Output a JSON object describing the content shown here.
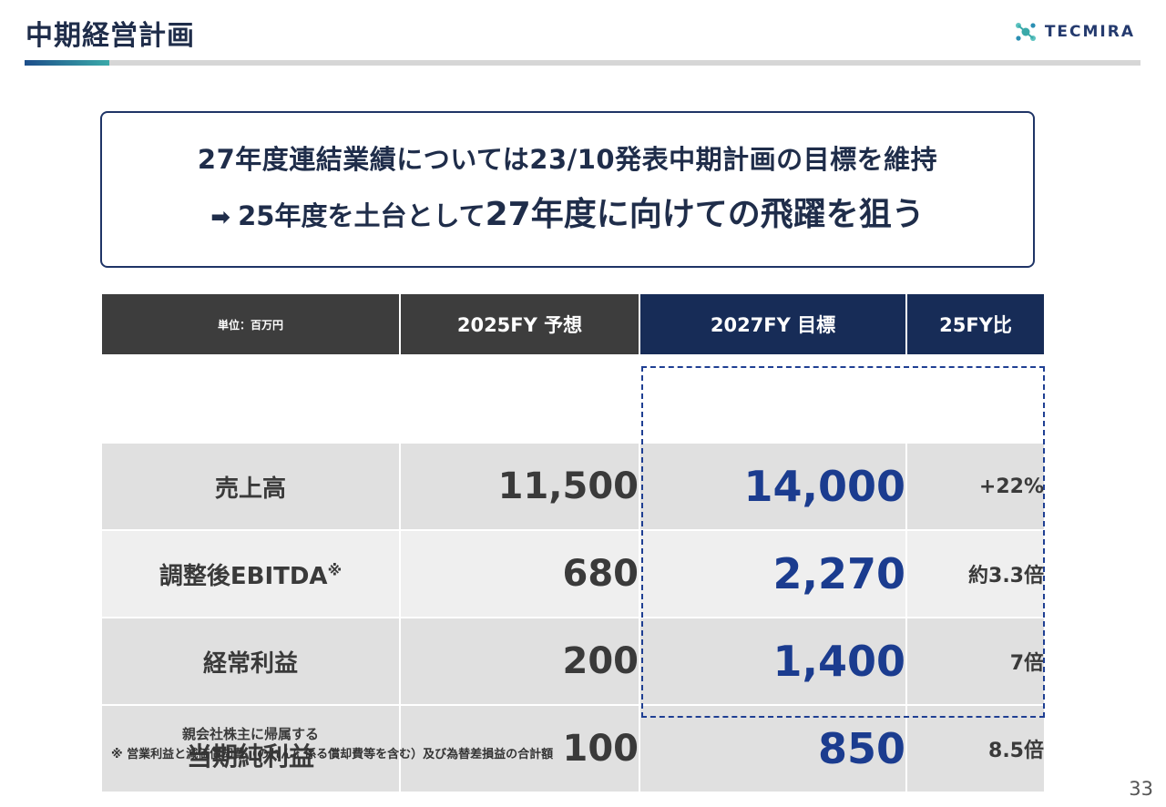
{
  "header": {
    "title": "中期経営計画",
    "logo_text": "TECMIRA"
  },
  "message": {
    "line1": "27年度連結業績については23/10発表中期計画の目標を維持",
    "line2_arrow": "➡",
    "line2_part1": "25年度を土台として",
    "line2_part2": "27年度に向けての飛躍を狙う"
  },
  "table": {
    "headers": {
      "unit": "単位：百万円",
      "fy2025": "2025FY 予想",
      "fy2027": "2027FY 目標",
      "ratio": "25FY比"
    },
    "rows": [
      {
        "label": "売上高",
        "fy2025": "11,500",
        "fy2027": "14,000",
        "ratio": "+22%"
      },
      {
        "label": "調整後EBITDA",
        "label_mark": "※",
        "fy2025": "680",
        "fy2027": "2,270",
        "ratio": "約3.3倍"
      },
      {
        "label": "経常利益",
        "fy2025": "200",
        "fy2027": "1,400",
        "ratio": "7倍"
      },
      {
        "label_sub": "親会社株主に帰属する",
        "label": "当期純利益",
        "fy2025": "100",
        "fy2027": "850",
        "ratio": "8.5倍"
      }
    ]
  },
  "footnote": "※ 営業利益と減価償却費（のれんに係る償却費等を含む）及び為替差損益の合計額",
  "page_number": "33",
  "colors": {
    "title": "#1f2d4a",
    "navy_header": "#172c57",
    "dark_header": "#3d3d3d",
    "target_value": "#1b3c8f",
    "accent_teal": "#3aa9a9"
  }
}
